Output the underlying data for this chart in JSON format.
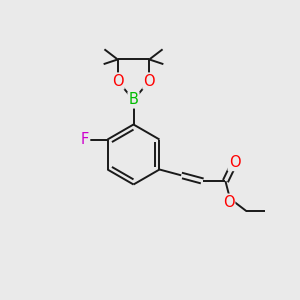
{
  "bg_color": "#eaeaea",
  "bond_color": "#1a1a1a",
  "atom_colors": {
    "O": "#ff0000",
    "B": "#00bb00",
    "F": "#cc00cc",
    "C": "#1a1a1a"
  },
  "line_width": 1.4,
  "font_size": 10.5
}
